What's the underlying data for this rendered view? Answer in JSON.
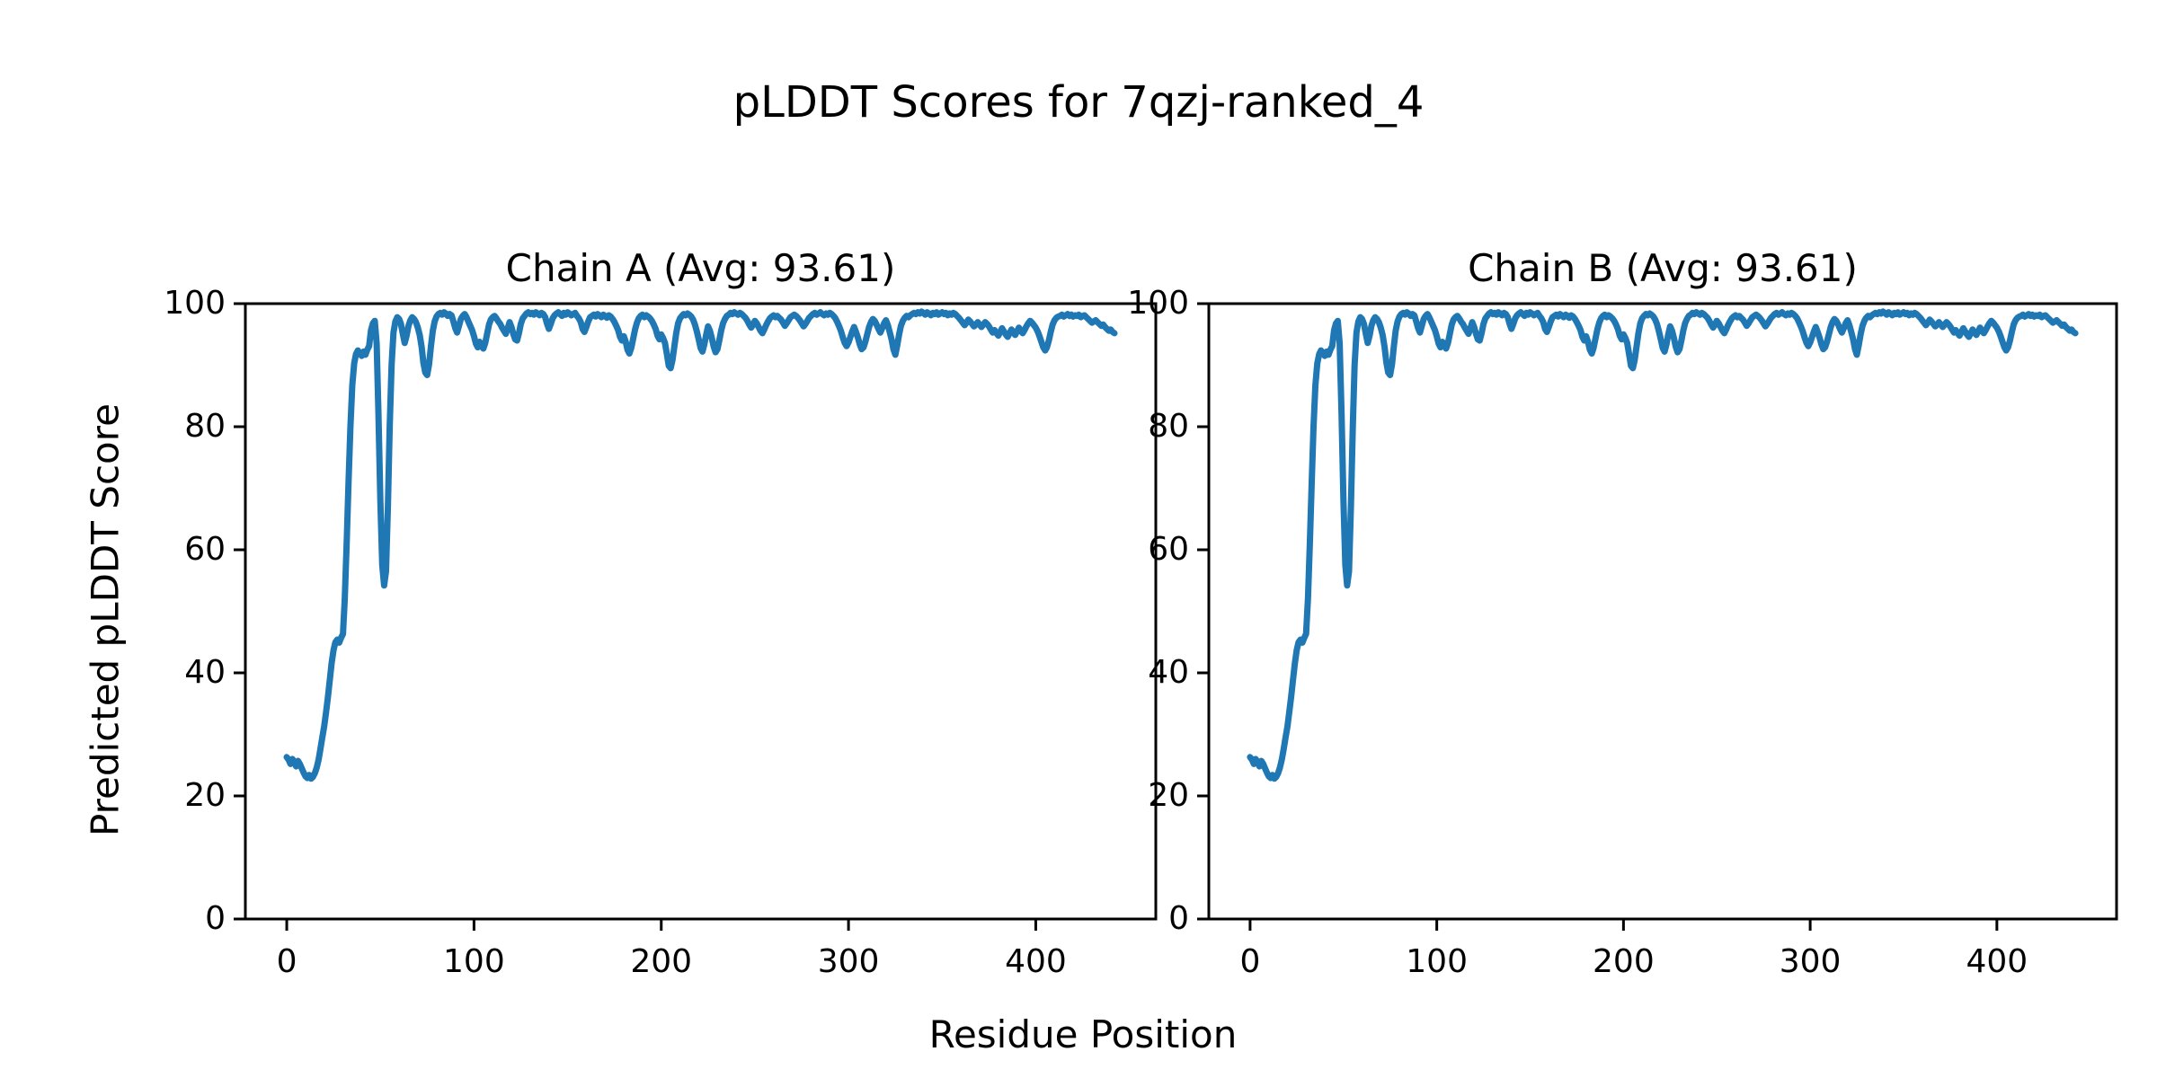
{
  "figure": {
    "title": "pLDDT Scores for 7qzj-ranked_4",
    "xlabel": "Residue Position",
    "ylabel": "Predicted pLDDT Score"
  },
  "chart_data": {
    "type": "line",
    "title": "pLDDT Scores for 7qzj-ranked_4",
    "xlabel": "Residue Position",
    "ylabel": "Predicted pLDDT Score",
    "line_color": "#1f77b4",
    "line_width": 7,
    "grid": false,
    "legend": false,
    "xticks": [
      0,
      100,
      200,
      300,
      400
    ],
    "yticks": [
      0,
      20,
      40,
      60,
      80,
      100
    ],
    "ylim": [
      0,
      100
    ],
    "x_margin_frac": 0.05,
    "x_start": 0,
    "subplots": [
      {
        "title": "Chain A (Avg: 93.61)",
        "chain": "A",
        "avg": 93.61
      },
      {
        "title": "Chain B (Avg: 93.61)",
        "chain": "B",
        "avg": 93.61
      }
    ],
    "values_note": "pLDDT per residue; Chain A and Chain B curves are identical",
    "values": [
      26.3,
      25.9,
      25.2,
      26.0,
      25.5,
      24.8,
      25.7,
      25.2,
      24.5,
      23.8,
      23.2,
      22.9,
      23.4,
      22.8,
      23.1,
      23.7,
      24.6,
      25.9,
      27.6,
      29.5,
      31.3,
      33.6,
      36.1,
      38.9,
      41.6,
      43.7,
      45.0,
      45.4,
      44.9,
      45.7,
      46.3,
      52.0,
      61.0,
      71.0,
      80.0,
      86.8,
      90.3,
      91.8,
      92.4,
      92.0,
      91.5,
      92.2,
      91.7,
      92.5,
      93.1,
      95.7,
      96.8,
      97.2,
      93.5,
      82.0,
      68.0,
      57.5,
      54.2,
      56.5,
      67.0,
      80.0,
      90.0,
      95.3,
      97.1,
      97.8,
      97.5,
      96.7,
      95.1,
      93.6,
      94.8,
      96.4,
      97.3,
      97.8,
      97.5,
      97.0,
      96.1,
      94.9,
      93.0,
      90.4,
      88.8,
      88.4,
      90.1,
      93.1,
      95.6,
      97.1,
      97.9,
      98.3,
      98.5,
      98.2,
      98.6,
      98.4,
      98.0,
      98.3,
      98.1,
      97.1,
      96.0,
      95.3,
      96.4,
      97.5,
      98.0,
      98.3,
      97.8,
      97.1,
      96.4,
      95.7,
      94.7,
      93.5,
      92.9,
      93.8,
      93.2,
      92.7,
      93.6,
      95.1,
      96.6,
      97.4,
      97.8,
      98.0,
      97.6,
      97.1,
      96.7,
      96.1,
      95.6,
      95.1,
      96.0,
      97.0,
      96.2,
      95.1,
      94.2,
      94.0,
      95.2,
      96.7,
      97.6,
      98.0,
      98.4,
      98.6,
      98.3,
      98.5,
      98.2,
      98.6,
      98.4,
      98.1,
      98.5,
      98.3,
      97.8,
      96.7,
      95.9,
      96.7,
      97.6,
      98.1,
      98.4,
      98.6,
      98.3,
      98.0,
      98.5,
      98.2,
      98.6,
      98.4,
      98.1,
      98.3,
      98.5,
      98.0,
      97.6,
      97.0,
      95.9,
      95.4,
      96.2,
      97.1,
      97.8,
      98.0,
      98.2,
      97.9,
      98.3,
      98.1,
      97.8,
      98.2,
      98.0,
      97.7,
      98.1,
      97.9,
      97.5,
      97.0,
      96.4,
      95.7,
      94.6,
      94.0,
      94.7,
      93.8,
      92.5,
      91.9,
      92.8,
      94.3,
      95.8,
      96.9,
      97.6,
      98.0,
      98.2,
      97.8,
      98.1,
      97.9,
      97.6,
      97.2,
      96.6,
      95.9,
      94.8,
      94.2,
      95.0,
      94.4,
      93.6,
      91.8,
      89.9,
      89.5,
      90.8,
      93.0,
      95.2,
      96.8,
      97.6,
      98.0,
      98.3,
      98.1,
      98.4,
      98.2,
      97.9,
      97.4,
      96.6,
      95.5,
      94.2,
      92.8,
      92.2,
      93.4,
      95.0,
      96.3,
      95.6,
      94.4,
      93.0,
      92.1,
      92.6,
      94.0,
      95.6,
      96.8,
      97.5,
      98.0,
      98.2,
      98.5,
      98.3,
      98.6,
      98.4,
      98.2,
      98.5,
      98.3,
      98.0,
      97.7,
      97.2,
      96.6,
      96.1,
      96.6,
      97.2,
      96.8,
      96.2,
      95.6,
      95.2,
      95.8,
      96.5,
      97.1,
      97.6,
      97.9,
      98.1,
      97.8,
      98.0,
      97.7,
      97.4,
      96.9,
      96.4,
      96.8,
      97.3,
      97.8,
      98.0,
      98.2,
      98.0,
      97.7,
      97.3,
      96.8,
      96.3,
      96.7,
      97.2,
      97.7,
      98.0,
      98.3,
      98.5,
      98.2,
      98.4,
      98.6,
      98.3,
      98.1,
      98.4,
      98.2,
      98.5,
      98.3,
      98.0,
      97.6,
      97.0,
      96.3,
      95.5,
      94.5,
      93.6,
      93.1,
      93.7,
      94.6,
      95.5,
      96.2,
      95.4,
      94.5,
      93.4,
      92.6,
      92.9,
      93.8,
      95.0,
      96.2,
      97.0,
      97.5,
      97.2,
      96.6,
      95.9,
      95.3,
      96.0,
      96.8,
      97.3,
      96.5,
      95.4,
      94.2,
      92.6,
      91.7,
      93.2,
      95.0,
      96.4,
      97.2,
      97.7,
      98.0,
      97.8,
      98.1,
      98.3,
      98.5,
      98.3,
      98.6,
      98.4,
      98.7,
      98.5,
      98.2,
      98.6,
      98.4,
      98.1,
      98.5,
      98.3,
      98.6,
      98.2,
      98.4,
      98.6,
      98.3,
      98.5,
      98.1,
      98.4,
      98.2,
      98.5,
      98.3,
      98.0,
      97.7,
      97.3,
      96.9,
      96.5,
      96.9,
      97.4,
      97.1,
      96.7,
      96.3,
      96.6,
      97.0,
      96.6,
      96.2,
      96.6,
      97.0,
      96.7,
      96.3,
      95.8,
      95.3,
      95.7,
      95.2,
      94.8,
      95.4,
      96.0,
      95.5,
      95.0,
      94.6,
      95.2,
      95.8,
      95.3,
      94.9,
      95.5,
      96.1,
      95.6,
      95.2,
      95.7,
      96.3,
      96.8,
      97.2,
      96.9,
      96.5,
      96.1,
      95.5,
      94.7,
      93.8,
      92.9,
      92.4,
      92.9,
      94.0,
      95.4,
      96.6,
      97.3,
      97.7,
      97.9,
      98.0,
      98.2,
      97.9,
      98.1,
      98.3,
      98.0,
      98.2,
      97.9,
      98.1,
      98.0,
      98.2,
      97.8,
      98.0,
      98.1,
      97.8,
      97.5,
      97.2,
      96.9,
      97.1,
      97.3,
      97.0,
      96.7,
      96.4,
      96.6,
      96.2,
      95.9,
      95.6,
      95.8,
      95.4,
      95.2
    ]
  }
}
